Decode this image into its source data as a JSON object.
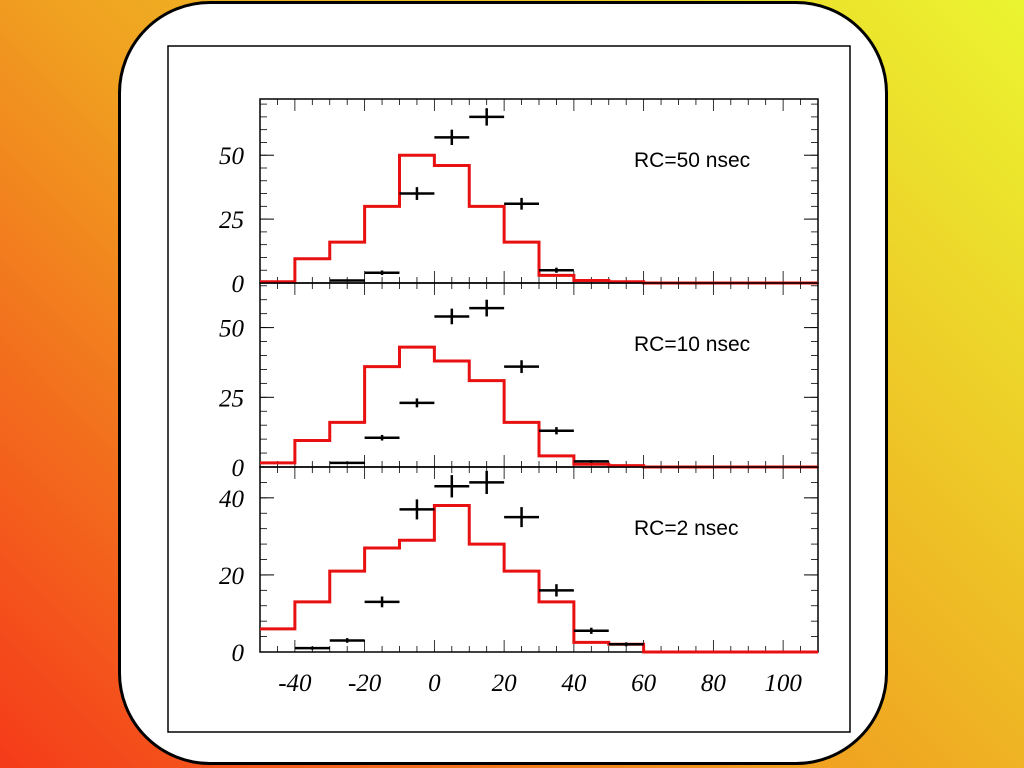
{
  "chart_data": {
    "type": "histogram",
    "shared_x": {
      "ticks": [
        -40,
        -20,
        0,
        20,
        40,
        60,
        80,
        100
      ],
      "tick_labels": [
        "-40",
        "-20",
        "0",
        "20",
        "40",
        "60",
        "80",
        "100"
      ],
      "xlim": [
        -50,
        110
      ]
    },
    "panels": [
      {
        "label": "RC=50 nsec",
        "ylim": [
          0,
          72
        ],
        "y_ticks": [
          0,
          25,
          50
        ],
        "y_tick_labels": [
          "0",
          "25",
          "50"
        ],
        "histogram": {
          "color": "#e81010",
          "edges": [
            -50,
            -40,
            -30,
            -20,
            -10,
            0,
            10,
            20,
            30,
            40,
            50,
            60,
            110
          ],
          "values": [
            0.5,
            9.5,
            16,
            30,
            50,
            46,
            30,
            16,
            3,
            1,
            0.5,
            0
          ]
        },
        "points": {
          "color": "#000000",
          "x": [
            -25,
            -15,
            -5,
            5,
            15,
            25,
            35
          ],
          "y": [
            1,
            4,
            35,
            57,
            65,
            31,
            5
          ],
          "yerr": [
            0.4,
            0.9,
            2.5,
            3,
            3.4,
            2.3,
            1
          ]
        }
      },
      {
        "label": "RC=10 nsec",
        "ylim": [
          0,
          66
        ],
        "y_ticks": [
          0,
          25,
          50
        ],
        "y_tick_labels": [
          "0",
          "25",
          "50"
        ],
        "histogram": {
          "color": "#e81010",
          "edges": [
            -50,
            -40,
            -30,
            -20,
            -10,
            0,
            10,
            20,
            30,
            40,
            50,
            60,
            110
          ],
          "values": [
            1.5,
            9.5,
            16,
            36,
            43,
            38,
            31,
            16,
            4,
            1,
            0.5,
            0
          ]
        },
        "points": {
          "color": "#000000",
          "x": [
            -25,
            -15,
            -5,
            5,
            15,
            25,
            35,
            45
          ],
          "y": [
            1.5,
            10.5,
            23,
            54,
            57,
            36,
            13,
            2
          ],
          "yerr": [
            0.4,
            1,
            1.6,
            2.8,
            3,
            2.3,
            1.3,
            0.5
          ]
        }
      },
      {
        "label": "RC=2 nsec",
        "ylim": [
          0,
          48
        ],
        "y_ticks": [
          0,
          20,
          40
        ],
        "y_tick_labels": [
          "0",
          "20",
          "40"
        ],
        "histogram": {
          "color": "#e81010",
          "edges": [
            -50,
            -40,
            -30,
            -20,
            -10,
            0,
            10,
            20,
            30,
            40,
            50,
            60,
            110
          ],
          "values": [
            6,
            13,
            21,
            27,
            29,
            38,
            28,
            21,
            13,
            2.5,
            2,
            0
          ]
        },
        "points": {
          "color": "#000000",
          "x": [
            -35,
            -25,
            -15,
            -5,
            5,
            15,
            25,
            35,
            45,
            55
          ],
          "y": [
            1,
            3,
            13,
            37,
            43,
            44,
            35,
            16,
            5.5,
            2
          ],
          "yerr": [
            0.4,
            0.6,
            1.4,
            2.6,
            2.9,
            3,
            2.6,
            1.6,
            0.8,
            0.5
          ]
        }
      }
    ]
  }
}
